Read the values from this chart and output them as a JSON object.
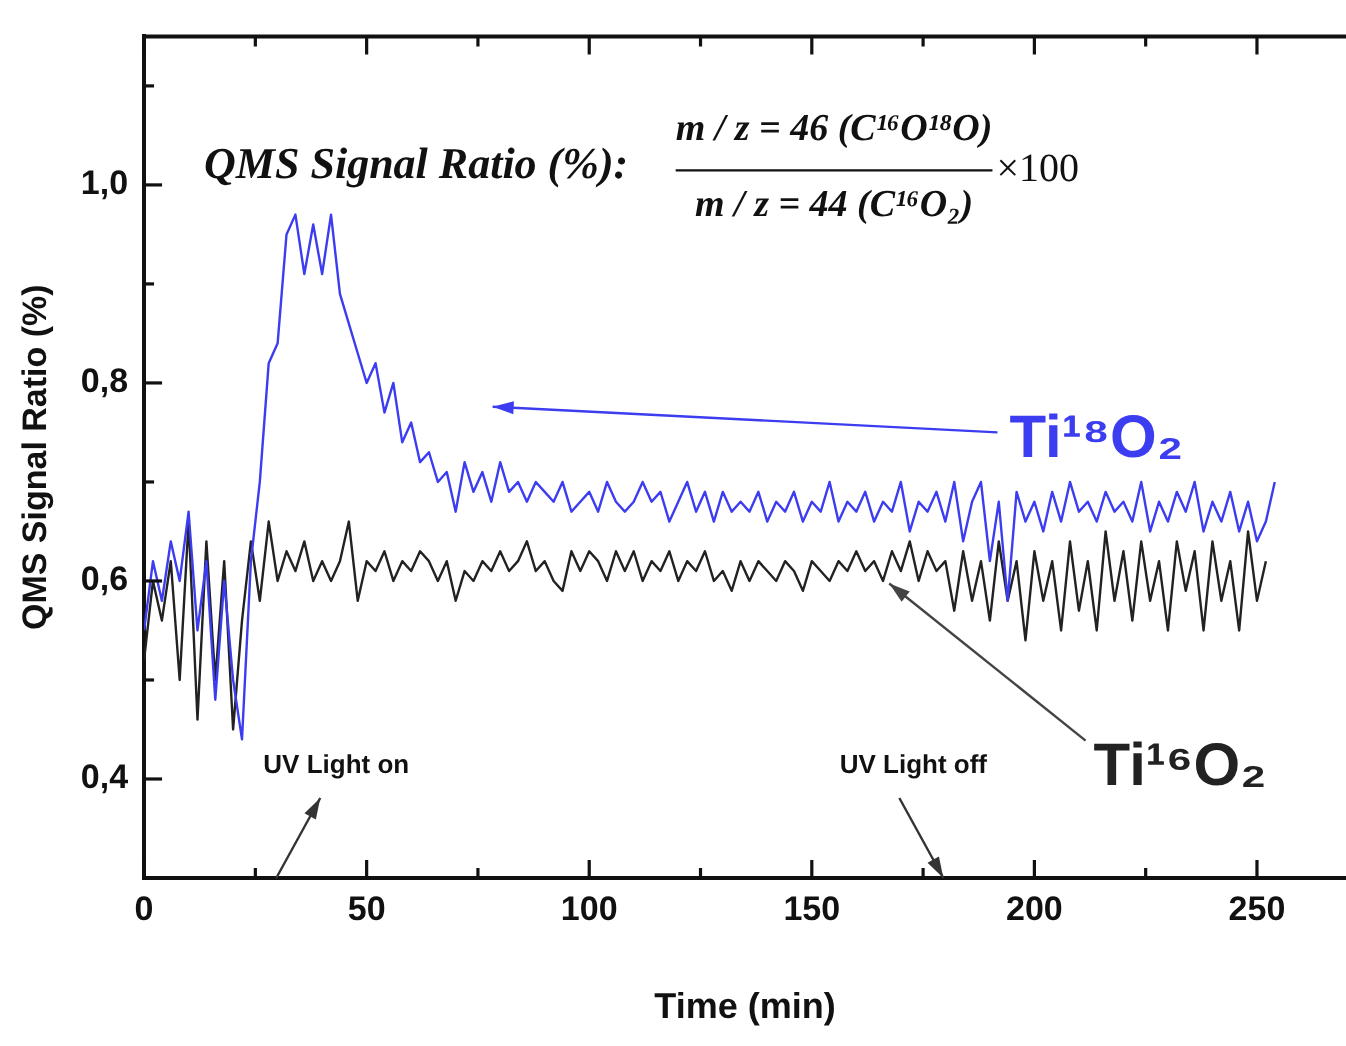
{
  "chart_data": {
    "type": "line",
    "xlabel": "Time (min)",
    "ylabel": "QMS Signal Ratio (%)",
    "annotations": [
      "QMS Signal Ratio (%):",
      "m / z = 46 (C¹⁶O¹⁸O)",
      "m / z = 44 (C¹⁶O₂)",
      "×100",
      "UV Light on",
      "UV Light off"
    ],
    "x": [
      0,
      2,
      4,
      6,
      8,
      10,
      12,
      14,
      16,
      18,
      20,
      22,
      24,
      26,
      28,
      30,
      32,
      34,
      36,
      38,
      40,
      42,
      44,
      46,
      48,
      50,
      52,
      54,
      56,
      58,
      60,
      62,
      64,
      66,
      68,
      70,
      72,
      74,
      76,
      78,
      80,
      82,
      84,
      86,
      88,
      90,
      92,
      94,
      96,
      98,
      100,
      102,
      104,
      106,
      108,
      110,
      112,
      114,
      116,
      118,
      120,
      122,
      124,
      126,
      128,
      130,
      132,
      134,
      136,
      138,
      140,
      142,
      144,
      146,
      148,
      150,
      152,
      154,
      156,
      158,
      160,
      162,
      164,
      166,
      168,
      170,
      172,
      174,
      176,
      178,
      180,
      182,
      184,
      186,
      188,
      190,
      192,
      194,
      196,
      198,
      200,
      202,
      204,
      206,
      208,
      210,
      212,
      214,
      216,
      218,
      220,
      222,
      224,
      226,
      228,
      230,
      232,
      234,
      236,
      238,
      240,
      242,
      244,
      246,
      248,
      250,
      252,
      254
    ],
    "series": [
      {
        "name": "Ti¹⁸O₂",
        "color": "#3c3cf0",
        "values": [
          0.55,
          0.62,
          0.58,
          0.64,
          0.6,
          0.67,
          0.55,
          0.62,
          0.48,
          0.6,
          0.5,
          0.44,
          0.62,
          0.7,
          0.82,
          0.84,
          0.95,
          0.97,
          0.91,
          0.96,
          0.91,
          0.97,
          0.89,
          0.86,
          0.83,
          0.8,
          0.82,
          0.77,
          0.8,
          0.74,
          0.76,
          0.72,
          0.73,
          0.7,
          0.71,
          0.67,
          0.72,
          0.69,
          0.71,
          0.68,
          0.72,
          0.69,
          0.7,
          0.68,
          0.7,
          0.69,
          0.68,
          0.7,
          0.67,
          0.68,
          0.69,
          0.67,
          0.7,
          0.68,
          0.67,
          0.68,
          0.7,
          0.68,
          0.69,
          0.66,
          0.68,
          0.7,
          0.67,
          0.69,
          0.66,
          0.69,
          0.67,
          0.68,
          0.67,
          0.69,
          0.66,
          0.68,
          0.67,
          0.69,
          0.66,
          0.68,
          0.67,
          0.7,
          0.66,
          0.68,
          0.67,
          0.69,
          0.66,
          0.68,
          0.67,
          0.7,
          0.65,
          0.68,
          0.67,
          0.69,
          0.66,
          0.7,
          0.64,
          0.68,
          0.7,
          0.62,
          0.68,
          0.58,
          0.69,
          0.66,
          0.68,
          0.65,
          0.69,
          0.66,
          0.7,
          0.67,
          0.68,
          0.66,
          0.69,
          0.67,
          0.68,
          0.66,
          0.7,
          0.65,
          0.68,
          0.66,
          0.69,
          0.67,
          0.7,
          0.65,
          0.68,
          0.66,
          0.69,
          0.65,
          0.68,
          0.64,
          0.66,
          0.7
        ]
      },
      {
        "name": "Ti¹⁶O₂",
        "color": "#222222",
        "values": [
          0.52,
          0.6,
          0.56,
          0.62,
          0.5,
          0.66,
          0.46,
          0.64,
          0.5,
          0.62,
          0.45,
          0.56,
          0.64,
          0.58,
          0.66,
          0.6,
          0.63,
          0.61,
          0.64,
          0.6,
          0.62,
          0.6,
          0.62,
          0.66,
          0.58,
          0.62,
          0.61,
          0.63,
          0.6,
          0.62,
          0.61,
          0.63,
          0.62,
          0.6,
          0.62,
          0.58,
          0.61,
          0.6,
          0.62,
          0.61,
          0.63,
          0.61,
          0.62,
          0.64,
          0.61,
          0.62,
          0.6,
          0.59,
          0.63,
          0.61,
          0.63,
          0.62,
          0.6,
          0.63,
          0.61,
          0.63,
          0.6,
          0.62,
          0.61,
          0.63,
          0.6,
          0.62,
          0.61,
          0.63,
          0.6,
          0.61,
          0.59,
          0.62,
          0.6,
          0.62,
          0.61,
          0.6,
          0.62,
          0.61,
          0.59,
          0.62,
          0.61,
          0.6,
          0.62,
          0.61,
          0.63,
          0.61,
          0.62,
          0.6,
          0.63,
          0.61,
          0.64,
          0.6,
          0.63,
          0.61,
          0.62,
          0.57,
          0.63,
          0.58,
          0.62,
          0.56,
          0.64,
          0.58,
          0.62,
          0.54,
          0.63,
          0.58,
          0.62,
          0.55,
          0.64,
          0.57,
          0.62,
          0.55,
          0.65,
          0.58,
          0.63,
          0.56,
          0.64,
          0.58,
          0.62,
          0.55,
          0.64,
          0.59,
          0.63,
          0.55,
          0.64,
          0.58,
          0.62,
          0.55,
          0.65,
          0.58,
          0.62,
          null
        ]
      }
    ],
    "xlim": [
      0,
      270
    ],
    "ylim": [
      0.3,
      1.15
    ],
    "xticks": [
      0,
      {
        "value": 25,
        "label": null
      },
      50,
      {
        "value": 75,
        "label": null
      },
      100,
      {
        "value": 125,
        "label": null
      },
      150,
      {
        "value": 175,
        "label": null
      },
      200,
      {
        "value": 225,
        "label": null
      },
      250
    ],
    "yticks": [
      {
        "value": 0.4,
        "label": "0,4"
      },
      {
        "value": 0.5,
        "label": null
      },
      {
        "value": 0.6,
        "label": "0,6"
      },
      {
        "value": 0.7,
        "label": null
      },
      {
        "value": 0.8,
        "label": "0,8"
      },
      {
        "value": 0.9,
        "label": null
      },
      {
        "value": 1.0,
        "label": "1,0"
      },
      {
        "value": 1.1,
        "label": null
      }
    ],
    "legend": false,
    "marker": "none",
    "line_style": "solid"
  }
}
